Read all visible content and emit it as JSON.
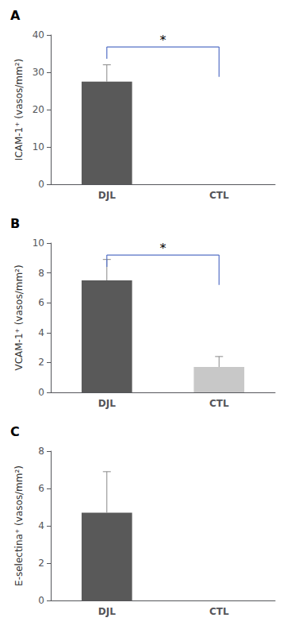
{
  "chart_data": [
    {
      "type": "bar",
      "title": "A",
      "ylabel": "ICAM-1⁺ (vasos/mm²)",
      "categories": [
        "DJL",
        "CTL"
      ],
      "values": [
        27.5,
        0
      ],
      "errors": [
        4.5,
        0
      ],
      "colors": [
        "#595959",
        null
      ],
      "ylim": [
        0,
        40
      ],
      "yticks": [
        0,
        10,
        20,
        30,
        40
      ],
      "grid": false,
      "annotations": [
        {
          "text": "*",
          "from": "DJL",
          "to": "CTL"
        }
      ]
    },
    {
      "type": "bar",
      "title": "B",
      "ylabel": "VCAM-1⁺ (vasos/mm²)",
      "categories": [
        "DJL",
        "CTL"
      ],
      "values": [
        7.5,
        1.7
      ],
      "errors": [
        1.4,
        0.7
      ],
      "colors": [
        "#595959",
        "#c8c8c8"
      ],
      "ylim": [
        0,
        10
      ],
      "yticks": [
        0,
        2,
        4,
        6,
        8,
        10
      ],
      "grid": false,
      "annotations": [
        {
          "text": "*",
          "from": "DJL",
          "to": "CTL"
        }
      ]
    },
    {
      "type": "bar",
      "title": "C",
      "ylabel": "E-selectina⁺ (vasos/mm²)",
      "categories": [
        "DJL",
        "CTL"
      ],
      "values": [
        4.7,
        0
      ],
      "errors": [
        2.2,
        0
      ],
      "colors": [
        "#595959",
        null
      ],
      "ylim": [
        0,
        8
      ],
      "yticks": [
        0,
        2,
        4,
        6,
        8
      ],
      "grid": false
    }
  ]
}
